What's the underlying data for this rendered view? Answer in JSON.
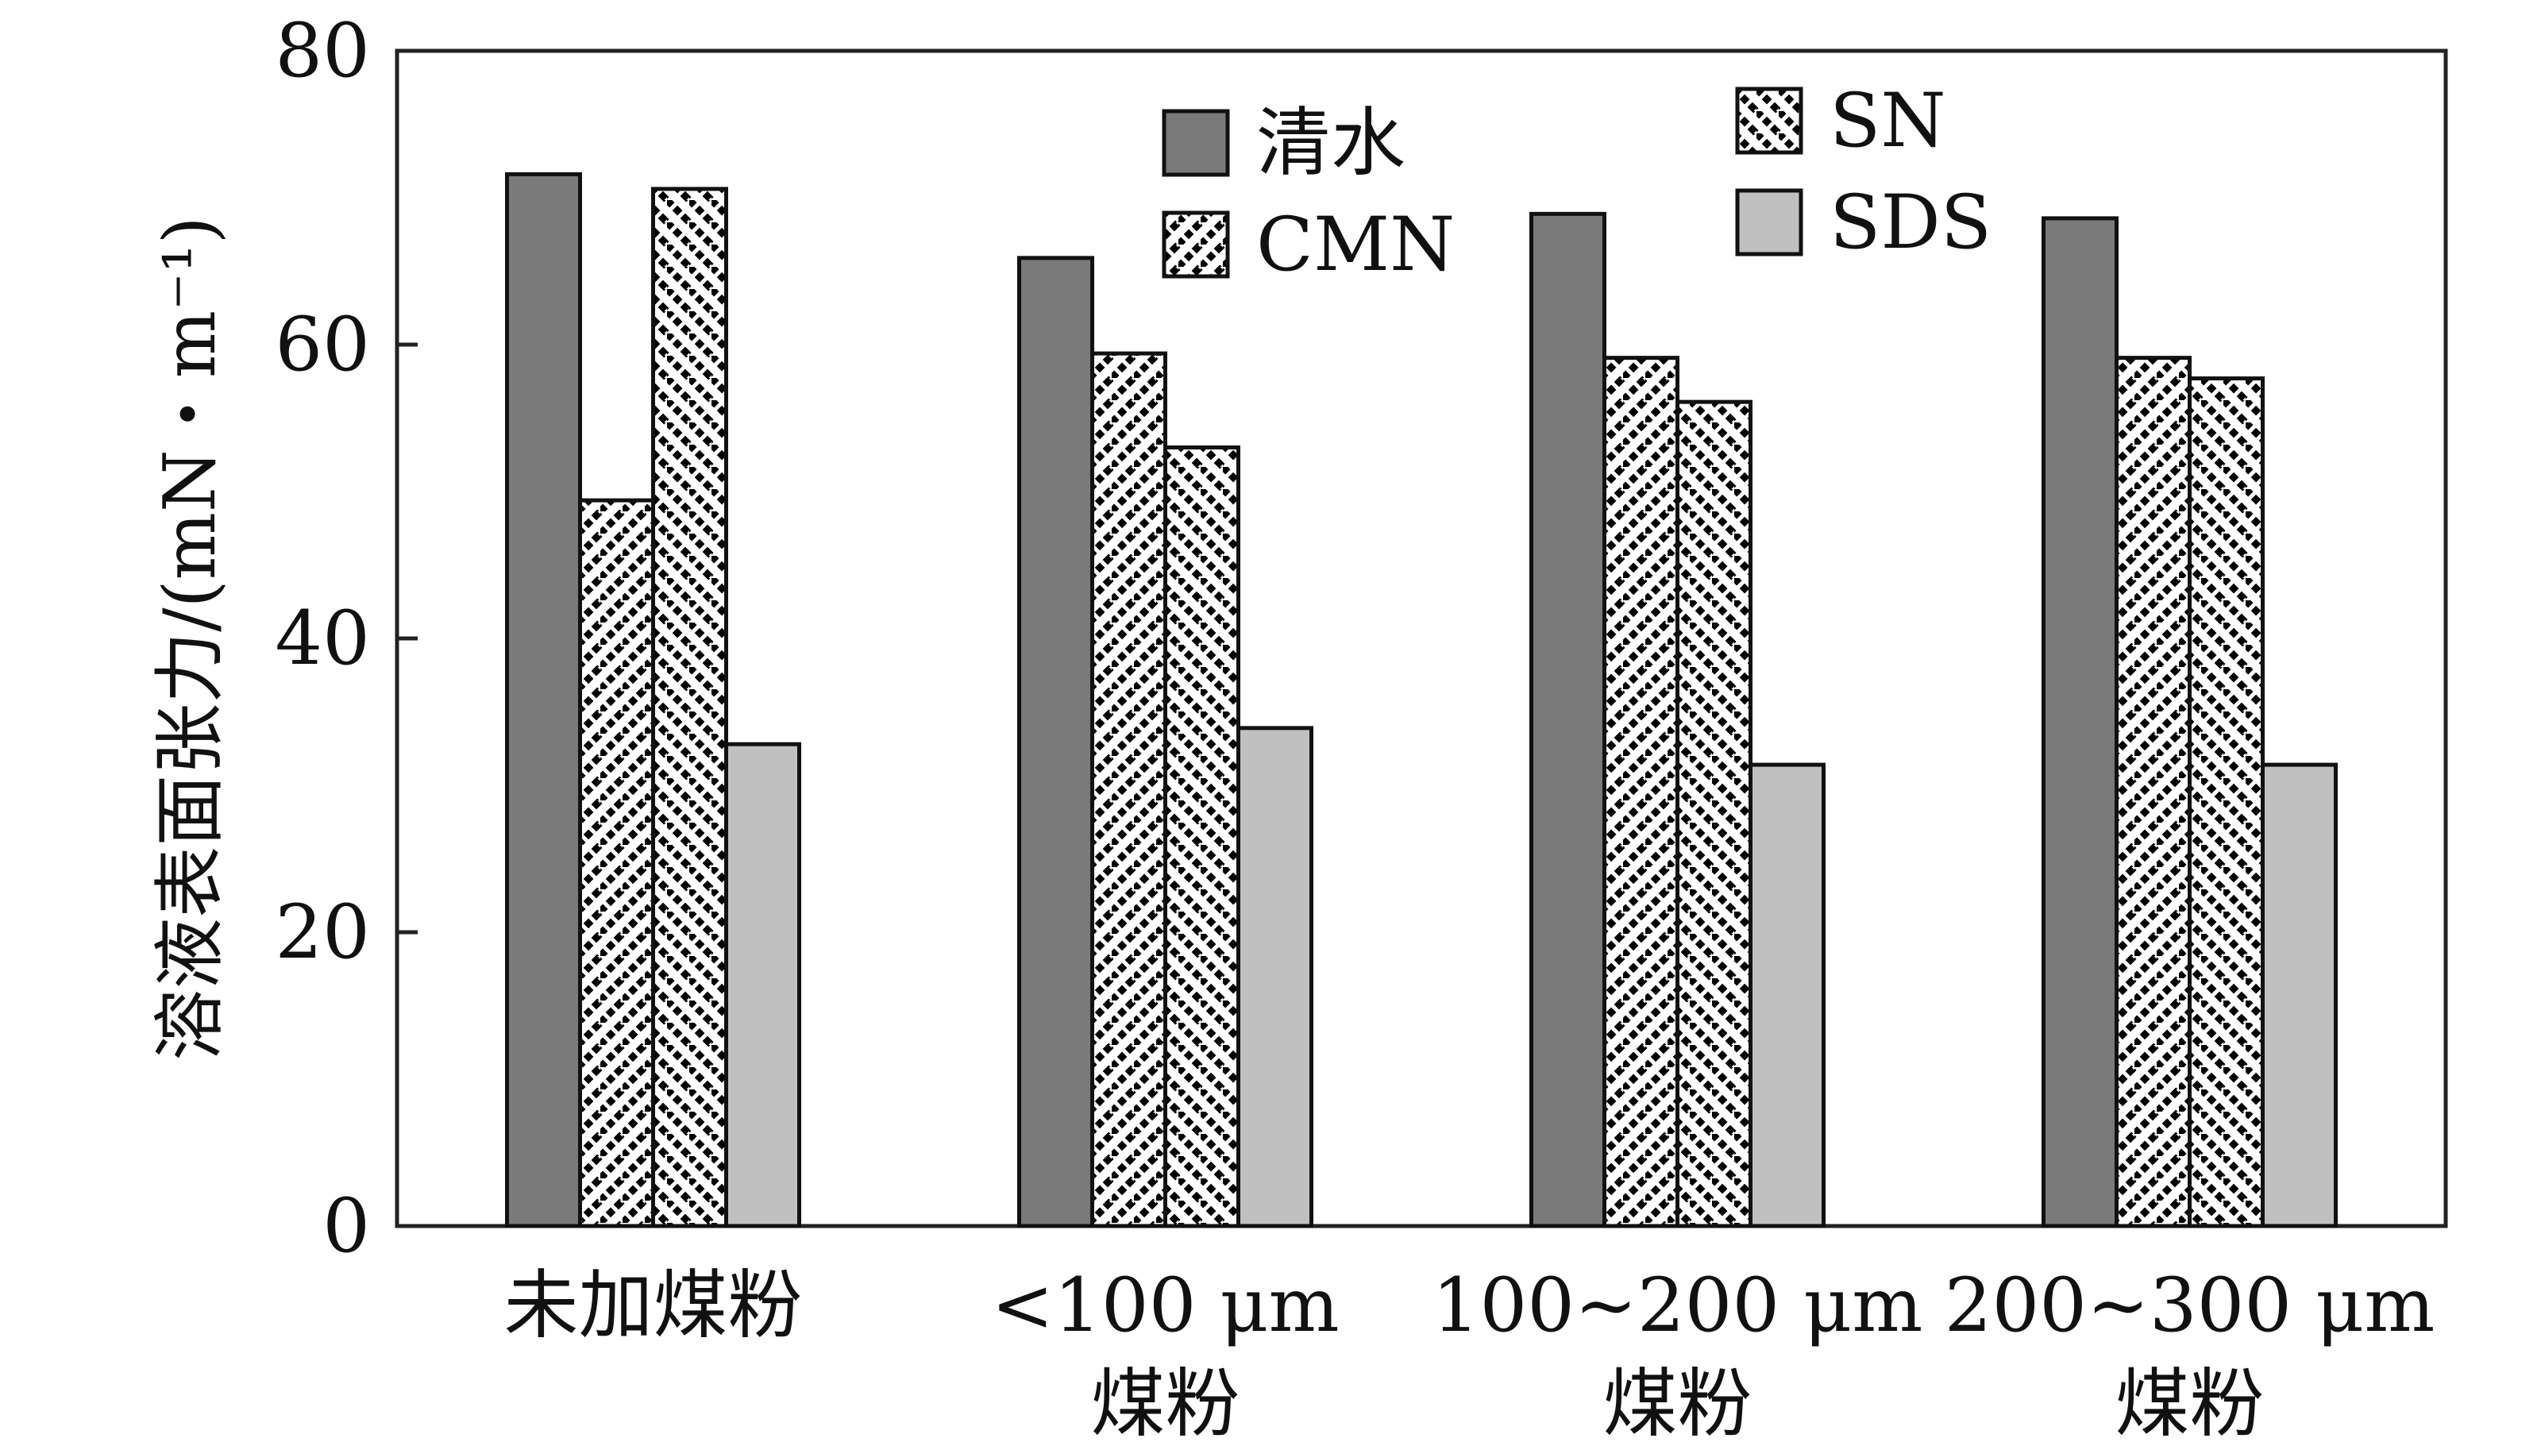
{
  "chart_data": {
    "type": "bar",
    "title": "",
    "xlabel": "",
    "ylabel": "溶液表面张力/(mN・m⁻¹)",
    "ylim": [
      0,
      80
    ],
    "yticks": [
      "0",
      "20",
      "40",
      "60",
      "80"
    ],
    "grid": false,
    "legend_position": "top-center",
    "categories": [
      [
        "未加煤粉"
      ],
      [
        "<100 μm",
        "煤粉"
      ],
      [
        "100~200 μm",
        "煤粉"
      ],
      [
        "200~300 μm",
        "煤粉"
      ]
    ],
    "series": [
      {
        "name": "清水",
        "values": [
          71.6,
          65.9,
          68.9,
          68.6
        ],
        "fill": "solid",
        "color": "#7a7a7a"
      },
      {
        "name": "CMN",
        "values": [
          49.4,
          59.4,
          59.1,
          59.1
        ],
        "fill": "hatch-forward",
        "color": "#000000"
      },
      {
        "name": "SN",
        "values": [
          70.6,
          53.0,
          56.1,
          57.7
        ],
        "fill": "hatch-back",
        "color": "#000000"
      },
      {
        "name": "SDS",
        "values": [
          32.8,
          33.9,
          31.4,
          31.4
        ],
        "fill": "solid",
        "color": "#c0c0c0"
      }
    ]
  }
}
